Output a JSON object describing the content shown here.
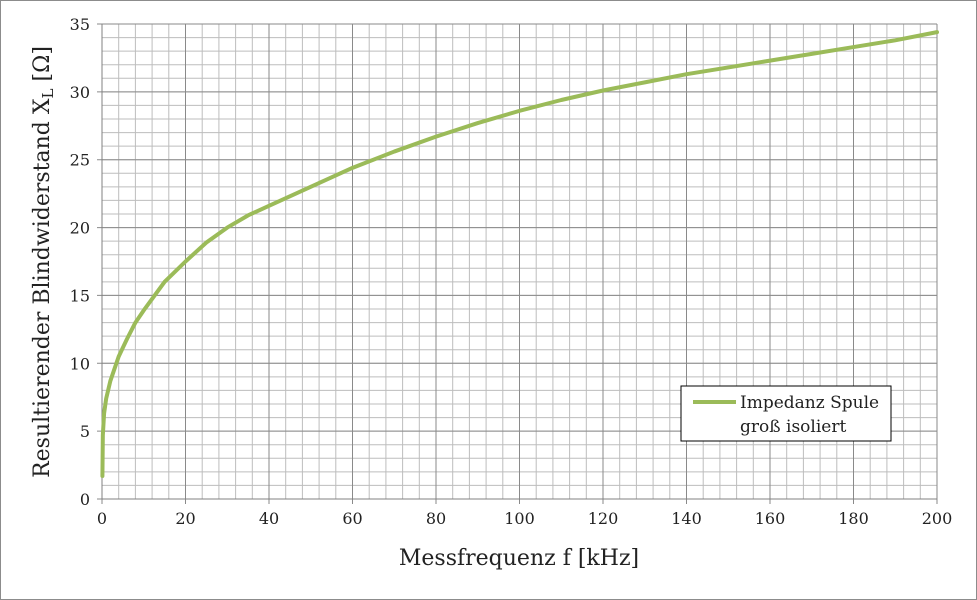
{
  "chart_data": {
    "type": "line",
    "xlabel": "Messfrequenz f [kHz]",
    "ylabel": {
      "main": "Resultierender Blindwiderstand X",
      "subscript": "L",
      "suffix": " [Ω]"
    },
    "xlim": [
      0,
      200
    ],
    "ylim": [
      0,
      35
    ],
    "x_ticks": [
      0,
      20,
      40,
      60,
      80,
      100,
      120,
      140,
      160,
      180,
      200
    ],
    "y_ticks": [
      0,
      5,
      10,
      15,
      20,
      25,
      30,
      35
    ],
    "x_minor_step": 4,
    "y_minor_step": 1,
    "grid": true,
    "legend_position": "bottom-right",
    "series": [
      {
        "name": "Impedanz Spule groß isoliert",
        "legend_lines": [
          "Impedanz Spule",
          "groß isoliert"
        ],
        "color": "#9bbb59",
        "x": [
          0.1,
          0.2,
          0.5,
          1,
          2,
          4,
          6,
          8,
          10,
          15,
          20,
          25,
          30,
          35,
          40,
          50,
          60,
          70,
          80,
          90,
          100,
          110,
          120,
          130,
          140,
          150,
          160,
          170,
          180,
          190,
          200
        ],
        "values": [
          1.7,
          4.7,
          6.3,
          7.4,
          8.7,
          10.5,
          11.8,
          13.0,
          13.9,
          16.0,
          17.5,
          18.9,
          20.0,
          20.9,
          21.6,
          23.0,
          24.4,
          25.6,
          26.7,
          27.7,
          28.6,
          29.4,
          30.1,
          30.7,
          31.3,
          31.8,
          32.3,
          32.8,
          33.3,
          33.8,
          34.4
        ]
      }
    ]
  }
}
